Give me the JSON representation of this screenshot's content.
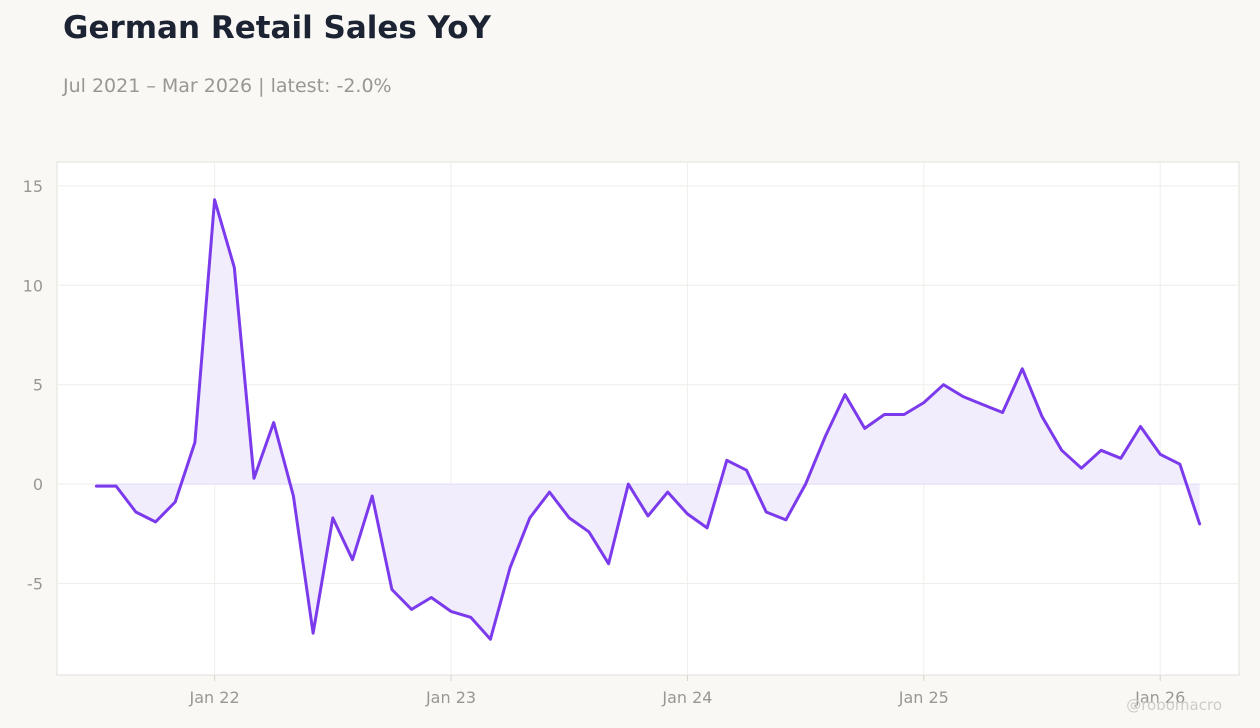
{
  "title": "German Retail Sales YoY",
  "subtitle": "Jul 2021 – Mar 2026 | latest: -2.0%",
  "watermark": "@robomacro",
  "colors": {
    "line": "#7c3aed",
    "fill": "#f1edfc",
    "title": "#1c2333",
    "muted": "#9a9793",
    "grid": "#f0eeea",
    "plot_bg": "#ffffff",
    "page_bg": "#f9f8f5"
  },
  "chart_data": {
    "type": "line",
    "title": "German Retail Sales YoY",
    "subtitle": "Jul 2021 – Mar 2026 | latest: -2.0%",
    "xlabel": "",
    "ylabel": "",
    "x_start": "2021-07",
    "x_end": "2026-03",
    "xlim": [
      "2021-05",
      "2026-05"
    ],
    "ylim": [
      -9.6,
      16.2
    ],
    "y_ticks": [
      -5,
      0,
      5,
      10,
      15
    ],
    "y_tick_labels": [
      "-5",
      "0",
      "5",
      "10",
      "15"
    ],
    "x_ticks": [
      "2022-01",
      "2023-01",
      "2024-01",
      "2025-01",
      "2026-01"
    ],
    "x_tick_labels": [
      "Jan 22",
      "Jan 23",
      "Jan 24",
      "Jan 25",
      "Jan 26"
    ],
    "grid": true,
    "legend": "none",
    "fill_to_zero": true,
    "series": [
      {
        "values": [
          -0.1,
          -0.1,
          -1.4,
          -1.9,
          -0.9,
          2.1,
          14.3,
          10.9,
          0.3,
          3.1,
          -0.6,
          -7.5,
          -1.7,
          -3.8,
          -0.6,
          -5.3,
          -6.3,
          -5.7,
          -6.4,
          -6.7,
          -7.8,
          -4.2,
          -1.7,
          -0.4,
          -1.7,
          -2.4,
          -4.0,
          0.0,
          -1.6,
          -0.4,
          -1.5,
          -2.2,
          1.2,
          0.7,
          -1.4,
          -1.8,
          0.0,
          2.4,
          4.5,
          2.8,
          3.5,
          3.5,
          4.1,
          5.0,
          4.4,
          4.0,
          3.6,
          5.8,
          3.4,
          1.7,
          0.8,
          1.7,
          1.3,
          2.9,
          1.5,
          1.0,
          -2.0
        ]
      }
    ]
  }
}
